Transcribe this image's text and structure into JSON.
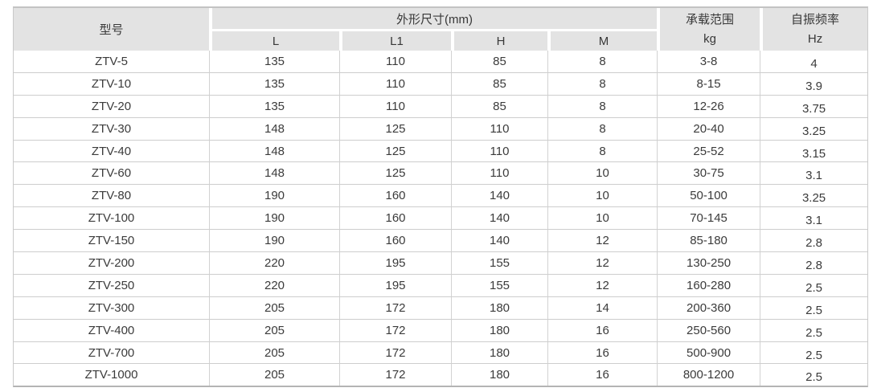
{
  "chart_data": {
    "type": "table",
    "header": {
      "model": "型号",
      "dimensions_group": "外形尺寸(mm)",
      "dimension_columns": [
        "L",
        "L1",
        "H",
        "M"
      ],
      "load_range": [
        "承载范围",
        "kg"
      ],
      "frequency": [
        "自振频率",
        "Hz"
      ]
    },
    "rows": [
      {
        "model": "ZTV-5",
        "L": "135",
        "L1": "110",
        "H": "85",
        "M": "8",
        "load": "3-8",
        "freq": "4"
      },
      {
        "model": "ZTV-10",
        "L": "135",
        "L1": "110",
        "H": "85",
        "M": "8",
        "load": "8-15",
        "freq": "3.9"
      },
      {
        "model": "ZTV-20",
        "L": "135",
        "L1": "110",
        "H": "85",
        "M": "8",
        "load": "12-26",
        "freq": "3.75"
      },
      {
        "model": "ZTV-30",
        "L": "148",
        "L1": "125",
        "H": "110",
        "M": "8",
        "load": "20-40",
        "freq": "3.25"
      },
      {
        "model": "ZTV-40",
        "L": "148",
        "L1": "125",
        "H": "110",
        "M": "8",
        "load": "25-52",
        "freq": "3.15"
      },
      {
        "model": "ZTV-60",
        "L": "148",
        "L1": "125",
        "H": "110",
        "M": "10",
        "load": "30-75",
        "freq": "3.1"
      },
      {
        "model": "ZTV-80",
        "L": "190",
        "L1": "160",
        "H": "140",
        "M": "10",
        "load": "50-100",
        "freq": "3.25"
      },
      {
        "model": "ZTV-100",
        "L": "190",
        "L1": "160",
        "H": "140",
        "M": "10",
        "load": "70-145",
        "freq": "3.1"
      },
      {
        "model": "ZTV-150",
        "L": "190",
        "L1": "160",
        "H": "140",
        "M": "12",
        "load": "85-180",
        "freq": "2.8"
      },
      {
        "model": "ZTV-200",
        "L": "220",
        "L1": "195",
        "H": "155",
        "M": "12",
        "load": "130-250",
        "freq": "2.8"
      },
      {
        "model": "ZTV-250",
        "L": "220",
        "L1": "195",
        "H": "155",
        "M": "12",
        "load": "160-280",
        "freq": "2.5"
      },
      {
        "model": "ZTV-300",
        "L": "205",
        "L1": "172",
        "H": "180",
        "M": "14",
        "load": "200-360",
        "freq": "2.5"
      },
      {
        "model": "ZTV-400",
        "L": "205",
        "L1": "172",
        "H": "180",
        "M": "16",
        "load": "250-560",
        "freq": "2.5"
      },
      {
        "model": "ZTV-700",
        "L": "205",
        "L1": "172",
        "H": "180",
        "M": "16",
        "load": "500-900",
        "freq": "2.5"
      },
      {
        "model": "ZTV-1000",
        "L": "205",
        "L1": "172",
        "H": "180",
        "M": "16",
        "load": "800-1200",
        "freq": "2.5"
      }
    ],
    "colors": {
      "header_background": "#e3e3e3",
      "row_divider": "#cdcdcd",
      "text": "#3b3b3b"
    },
    "layout": {
      "grid": "horizontal and vertical light-gray cell borders",
      "header_rows": 2,
      "data_rows": 15
    }
  }
}
